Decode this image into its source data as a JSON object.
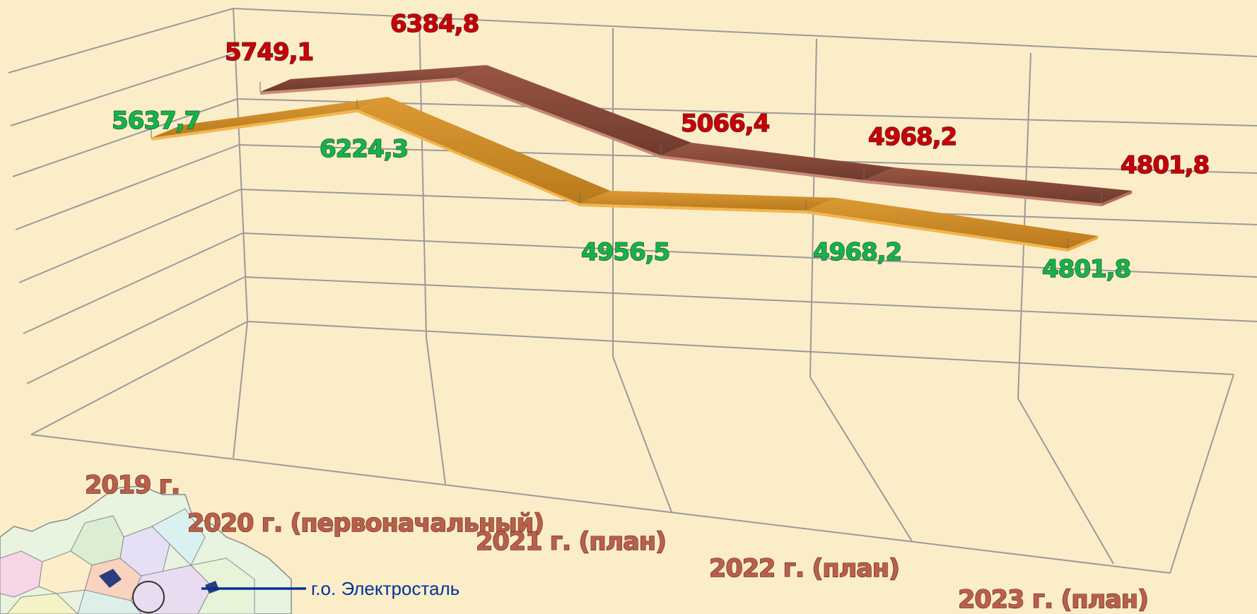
{
  "chart_data": {
    "type": "line",
    "style": "3d-ribbon",
    "categories": [
      "2019 г.",
      "2020 г. (первоначальный)",
      "2021 г. (план)",
      "2022 г. (план)",
      "2023 г. (план)"
    ],
    "series": [
      {
        "values": [
          5749.1,
          6384.8,
          5066.4,
          4968.2,
          4801.8
        ],
        "labels": [
          "5749,1",
          "6384,8",
          "5066,4",
          "4968,2",
          "4801,8"
        ],
        "color": "#8b4a39"
      },
      {
        "values": [
          5637.7,
          6224.3,
          4956.5,
          4968.2,
          4801.8
        ],
        "labels": [
          "5637,7",
          "6224,3",
          "4956,5",
          "4968,2",
          "4801,8"
        ],
        "color": "#d08a22"
      }
    ],
    "label_colors": {
      "series_1": "#c8000a",
      "series_2": "#17b24a",
      "categories": "#b9604a"
    },
    "grid": true
  },
  "legend": {
    "label": "г.о. Электросталь",
    "line_color": "#003399"
  }
}
